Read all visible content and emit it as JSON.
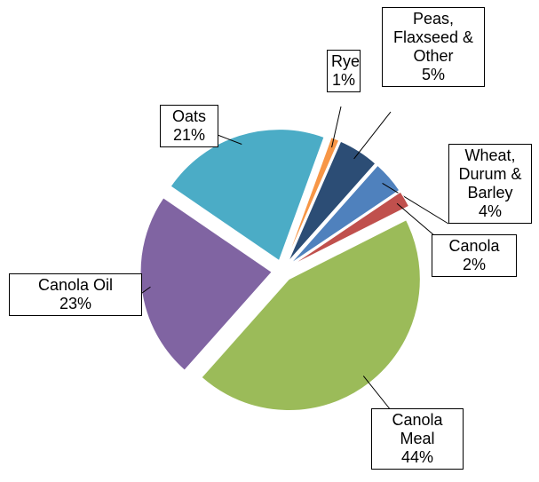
{
  "chart_data": {
    "type": "pie",
    "categories": [
      "Rye",
      "Peas, Flaxseed & Other",
      "Wheat, Durum & Barley",
      "Canola",
      "Canola Meal",
      "Canola Oil",
      "Oats"
    ],
    "values": [
      1,
      5,
      4,
      2,
      44,
      23,
      21
    ],
    "value_labels": [
      "1%",
      "5%",
      "4%",
      "2%",
      "44%",
      "23%",
      "21%"
    ],
    "colors": [
      "#f79646",
      "#2c4d75",
      "#4f81bd",
      "#c0504d",
      "#9bbb59",
      "#8064a2",
      "#4bacc6"
    ]
  }
}
